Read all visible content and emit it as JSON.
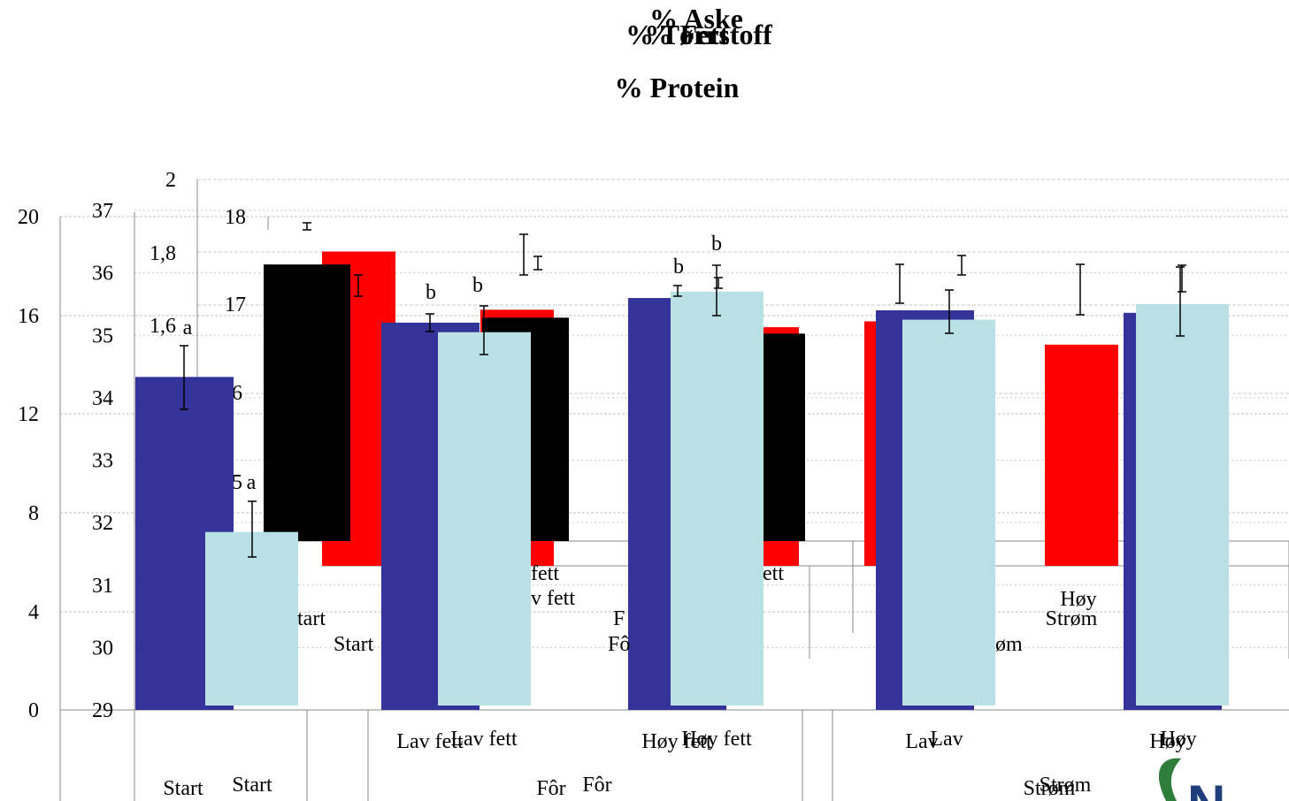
{
  "chart_data": [
    {
      "type": "bar",
      "title": "% Aske",
      "ylim": [
        0,
        2
      ],
      "yticks": [
        "2",
        "1,8",
        "1,6"
      ],
      "bars": [
        {
          "group": "Start",
          "value": 1.6,
          "letter": "a"
        },
        {
          "group": "Fôr",
          "category": "Lav fett",
          "value": 1.68,
          "letter": "b"
        },
        {
          "group": "Fôr",
          "category": "Høy fett",
          "value": 1.72,
          "letter": "b"
        },
        {
          "group": "Strøm",
          "category": "Lav",
          "value": 1.7,
          "letter": ""
        },
        {
          "group": "Strøm",
          "category": "Høy",
          "value": 1.7,
          "letter": ""
        }
      ],
      "color": "#333399"
    },
    {
      "type": "bar",
      "title": "% Fett",
      "ylim": [
        0,
        20
      ],
      "yticks": [
        "20",
        "16",
        "12",
        "8",
        "4",
        "0"
      ],
      "bars": [
        {
          "group": "Start",
          "value": 13.5
        },
        {
          "group": "Fôr",
          "category": "Lav fett",
          "value": 15.7
        },
        {
          "group": "Fôr",
          "category": "Høy fett",
          "value": 16.7
        },
        {
          "group": "Strøm",
          "category": "Lav",
          "value": 16.2
        },
        {
          "group": "Strøm",
          "category": "Høy",
          "value": 16.1
        }
      ],
      "color": "#333399"
    },
    {
      "type": "bar",
      "title": "% Tørrstoff",
      "ylim": [
        29,
        37
      ],
      "yticks": [
        "37",
        "36",
        "35",
        "34",
        "33",
        "32",
        "31",
        "30",
        "29"
      ],
      "bars": [
        {
          "group": "Start",
          "value": 31.85,
          "letter": "a"
        },
        {
          "group": "Fôr",
          "category": "Lav fett",
          "value": 35.05,
          "letter": "b"
        },
        {
          "group": "Fôr",
          "category": "Høy fett",
          "value": 35.7,
          "letter": "b"
        },
        {
          "group": "Strøm",
          "category": "Lav",
          "value": 35.25,
          "letter": ""
        },
        {
          "group": "Strøm",
          "category": "Høy",
          "value": 35.5,
          "letter": ""
        }
      ],
      "color": "#b9e0e4"
    },
    {
      "type": "bar",
      "title": "% Protein",
      "ylim": [
        15,
        18
      ],
      "yticks": [
        "18",
        "17",
        "16",
        "15"
      ],
      "bars": [
        {
          "group": "Start",
          "value": 17.6
        },
        {
          "group": "Fôr",
          "category": "Lav fett",
          "value": 17.1
        },
        {
          "group": "Fôr",
          "category": "Høy fett",
          "value": 16.95
        },
        {
          "group": "Strøm",
          "category": "Lav",
          "value": 17.0
        },
        {
          "group": "Strøm",
          "category": "Høy",
          "value": 16.8
        }
      ],
      "colors": [
        "#ff0000",
        "#000000"
      ]
    }
  ],
  "labels": {
    "title_aske": "% Aske",
    "title_fett": "% Fett",
    "title_torrstoff": "% Tørrstoff",
    "title_protein": "% Protein",
    "cat_start": "Start",
    "cat_lav_fett": "Lav fett",
    "cat_hoy_fett": "Høy fett",
    "cat_lav": "Lav",
    "cat_hoy": "Høy",
    "group_for": "Fôr",
    "group_strom": "Strøm",
    "frag_tart": "tart",
    "frag_fett": "fett",
    "frag_v_fett": "v fett",
    "frag_f": "F",
    "frag_fo": "Fô",
    "frag_ett": "ett",
    "frag_om": "øm",
    "frag_start": "Start"
  },
  "logo": {
    "text": "N"
  }
}
